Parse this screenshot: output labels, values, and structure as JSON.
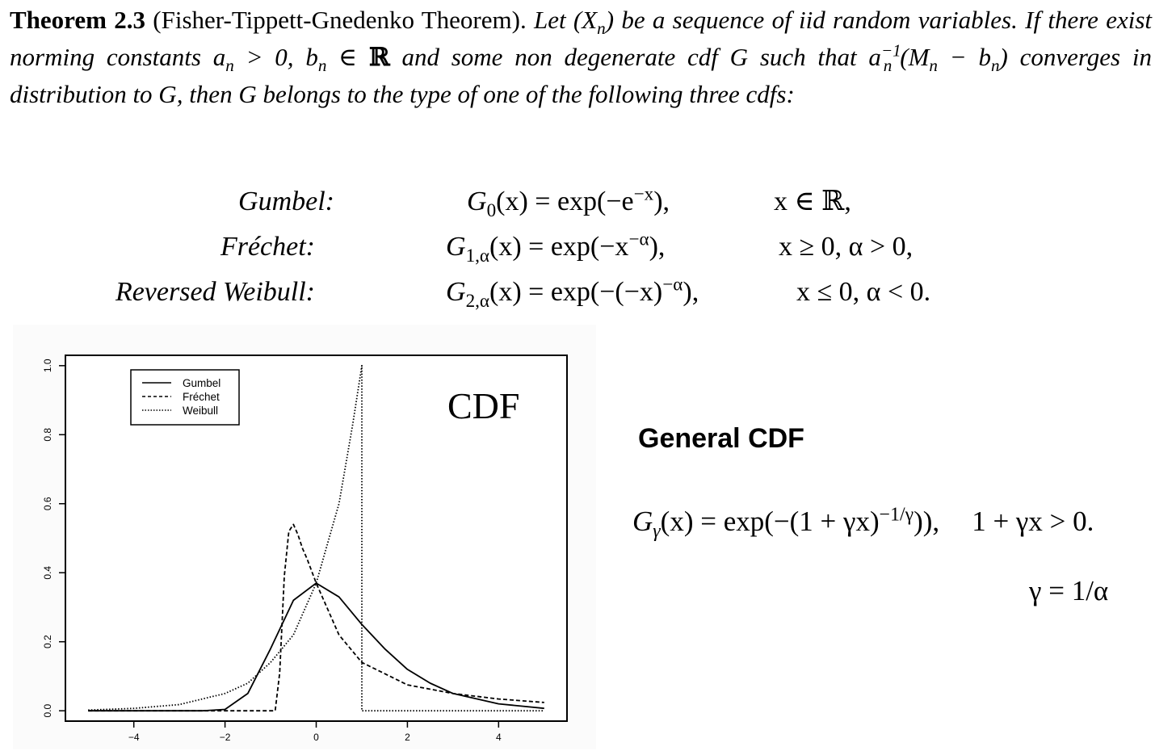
{
  "theorem": {
    "label": "Theorem 2.3",
    "name": "(Fisher-Tippett-Gnedenko Theorem).",
    "text_part1": "Let (X",
    "sub_n": "n",
    "text_part2": ") be a sequence of iid random variables. If there exist norming constants a",
    "text_part3": " > 0, b",
    "text_part4": " ∈ ",
    "reals": "ℝ",
    "text_part5": " and some non degenerate cdf G such that a",
    "sup_inv": "−1",
    "text_part6": "(M",
    "text_part7": " − b",
    "text_part8": ") converges in distribution to G, then G belongs to the type of one of the following three cdfs:"
  },
  "equations": [
    {
      "name": "Gumbel:",
      "lhs_main": "G",
      "lhs_sub": "0",
      "formula_pre": "(x) = exp(−e",
      "formula_sup": "−x",
      "formula_post": "),",
      "condition": "x ∈ ℝ,"
    },
    {
      "name": "Fréchet:",
      "lhs_main": "G",
      "lhs_sub": "1,α",
      "formula_pre": "(x) = exp(−x",
      "formula_sup": "−α",
      "formula_post": "),",
      "condition": "x ≥ 0, α > 0,"
    },
    {
      "name": "Reversed Weibull:",
      "lhs_main": "G",
      "lhs_sub": "2,α",
      "formula_pre": "(x) = exp(−(−x)",
      "formula_sup": "−α",
      "formula_post": "),",
      "condition": "x ≤ 0, α < 0."
    }
  ],
  "chart_data": {
    "type": "line",
    "title": "CDF",
    "xlabel": "",
    "ylabel": "",
    "xlim": [
      -5.5,
      5.5
    ],
    "ylim": [
      -0.03,
      1.03
    ],
    "x_ticks": [
      "-4",
      "-2",
      "0",
      "2",
      "4"
    ],
    "y_ticks": [
      "0.0",
      "0.2",
      "0.4",
      "0.6",
      "0.8",
      "1.0"
    ],
    "legend_position": "top-left",
    "series": [
      {
        "name": "Gumbel",
        "style": "solid",
        "x": [
          -5,
          -2.5,
          -2,
          -1.5,
          -1,
          -0.5,
          0,
          0.5,
          1,
          1.5,
          2,
          2.5,
          3,
          4,
          5
        ],
        "y": [
          0,
          0.0,
          0.004,
          0.05,
          0.18,
          0.32,
          0.37,
          0.33,
          0.25,
          0.18,
          0.12,
          0.08,
          0.05,
          0.02,
          0.007
        ]
      },
      {
        "name": "Fréchet",
        "style": "dashed",
        "x": [
          -5,
          -0.9,
          -0.8,
          -0.7,
          -0.6,
          -0.5,
          -0.4,
          -0.3,
          -0.2,
          0,
          0.5,
          1,
          2,
          3,
          4,
          5
        ],
        "y": [
          0,
          0,
          0.11,
          0.39,
          0.52,
          0.54,
          0.51,
          0.47,
          0.44,
          0.37,
          0.22,
          0.14,
          0.075,
          0.05,
          0.034,
          0.024
        ]
      },
      {
        "name": "Weibull",
        "style": "dotted",
        "x": [
          -5,
          -4,
          -3,
          -2,
          -1.5,
          -1,
          -0.5,
          0,
          0.5,
          0.8,
          1,
          1,
          5
        ],
        "y": [
          0.002,
          0.007,
          0.018,
          0.05,
          0.08,
          0.14,
          0.22,
          0.37,
          0.6,
          0.83,
          1.0,
          0,
          0
        ]
      }
    ]
  },
  "general": {
    "title": "General CDF",
    "lhs": "G",
    "lhs_sub": "γ",
    "formula_pre": "(x) = exp(−(1 + γx)",
    "formula_sup": "−1/γ",
    "formula_post": ")),",
    "condition": "1 + γx > 0.",
    "gamma_def": "γ = 1/α"
  }
}
